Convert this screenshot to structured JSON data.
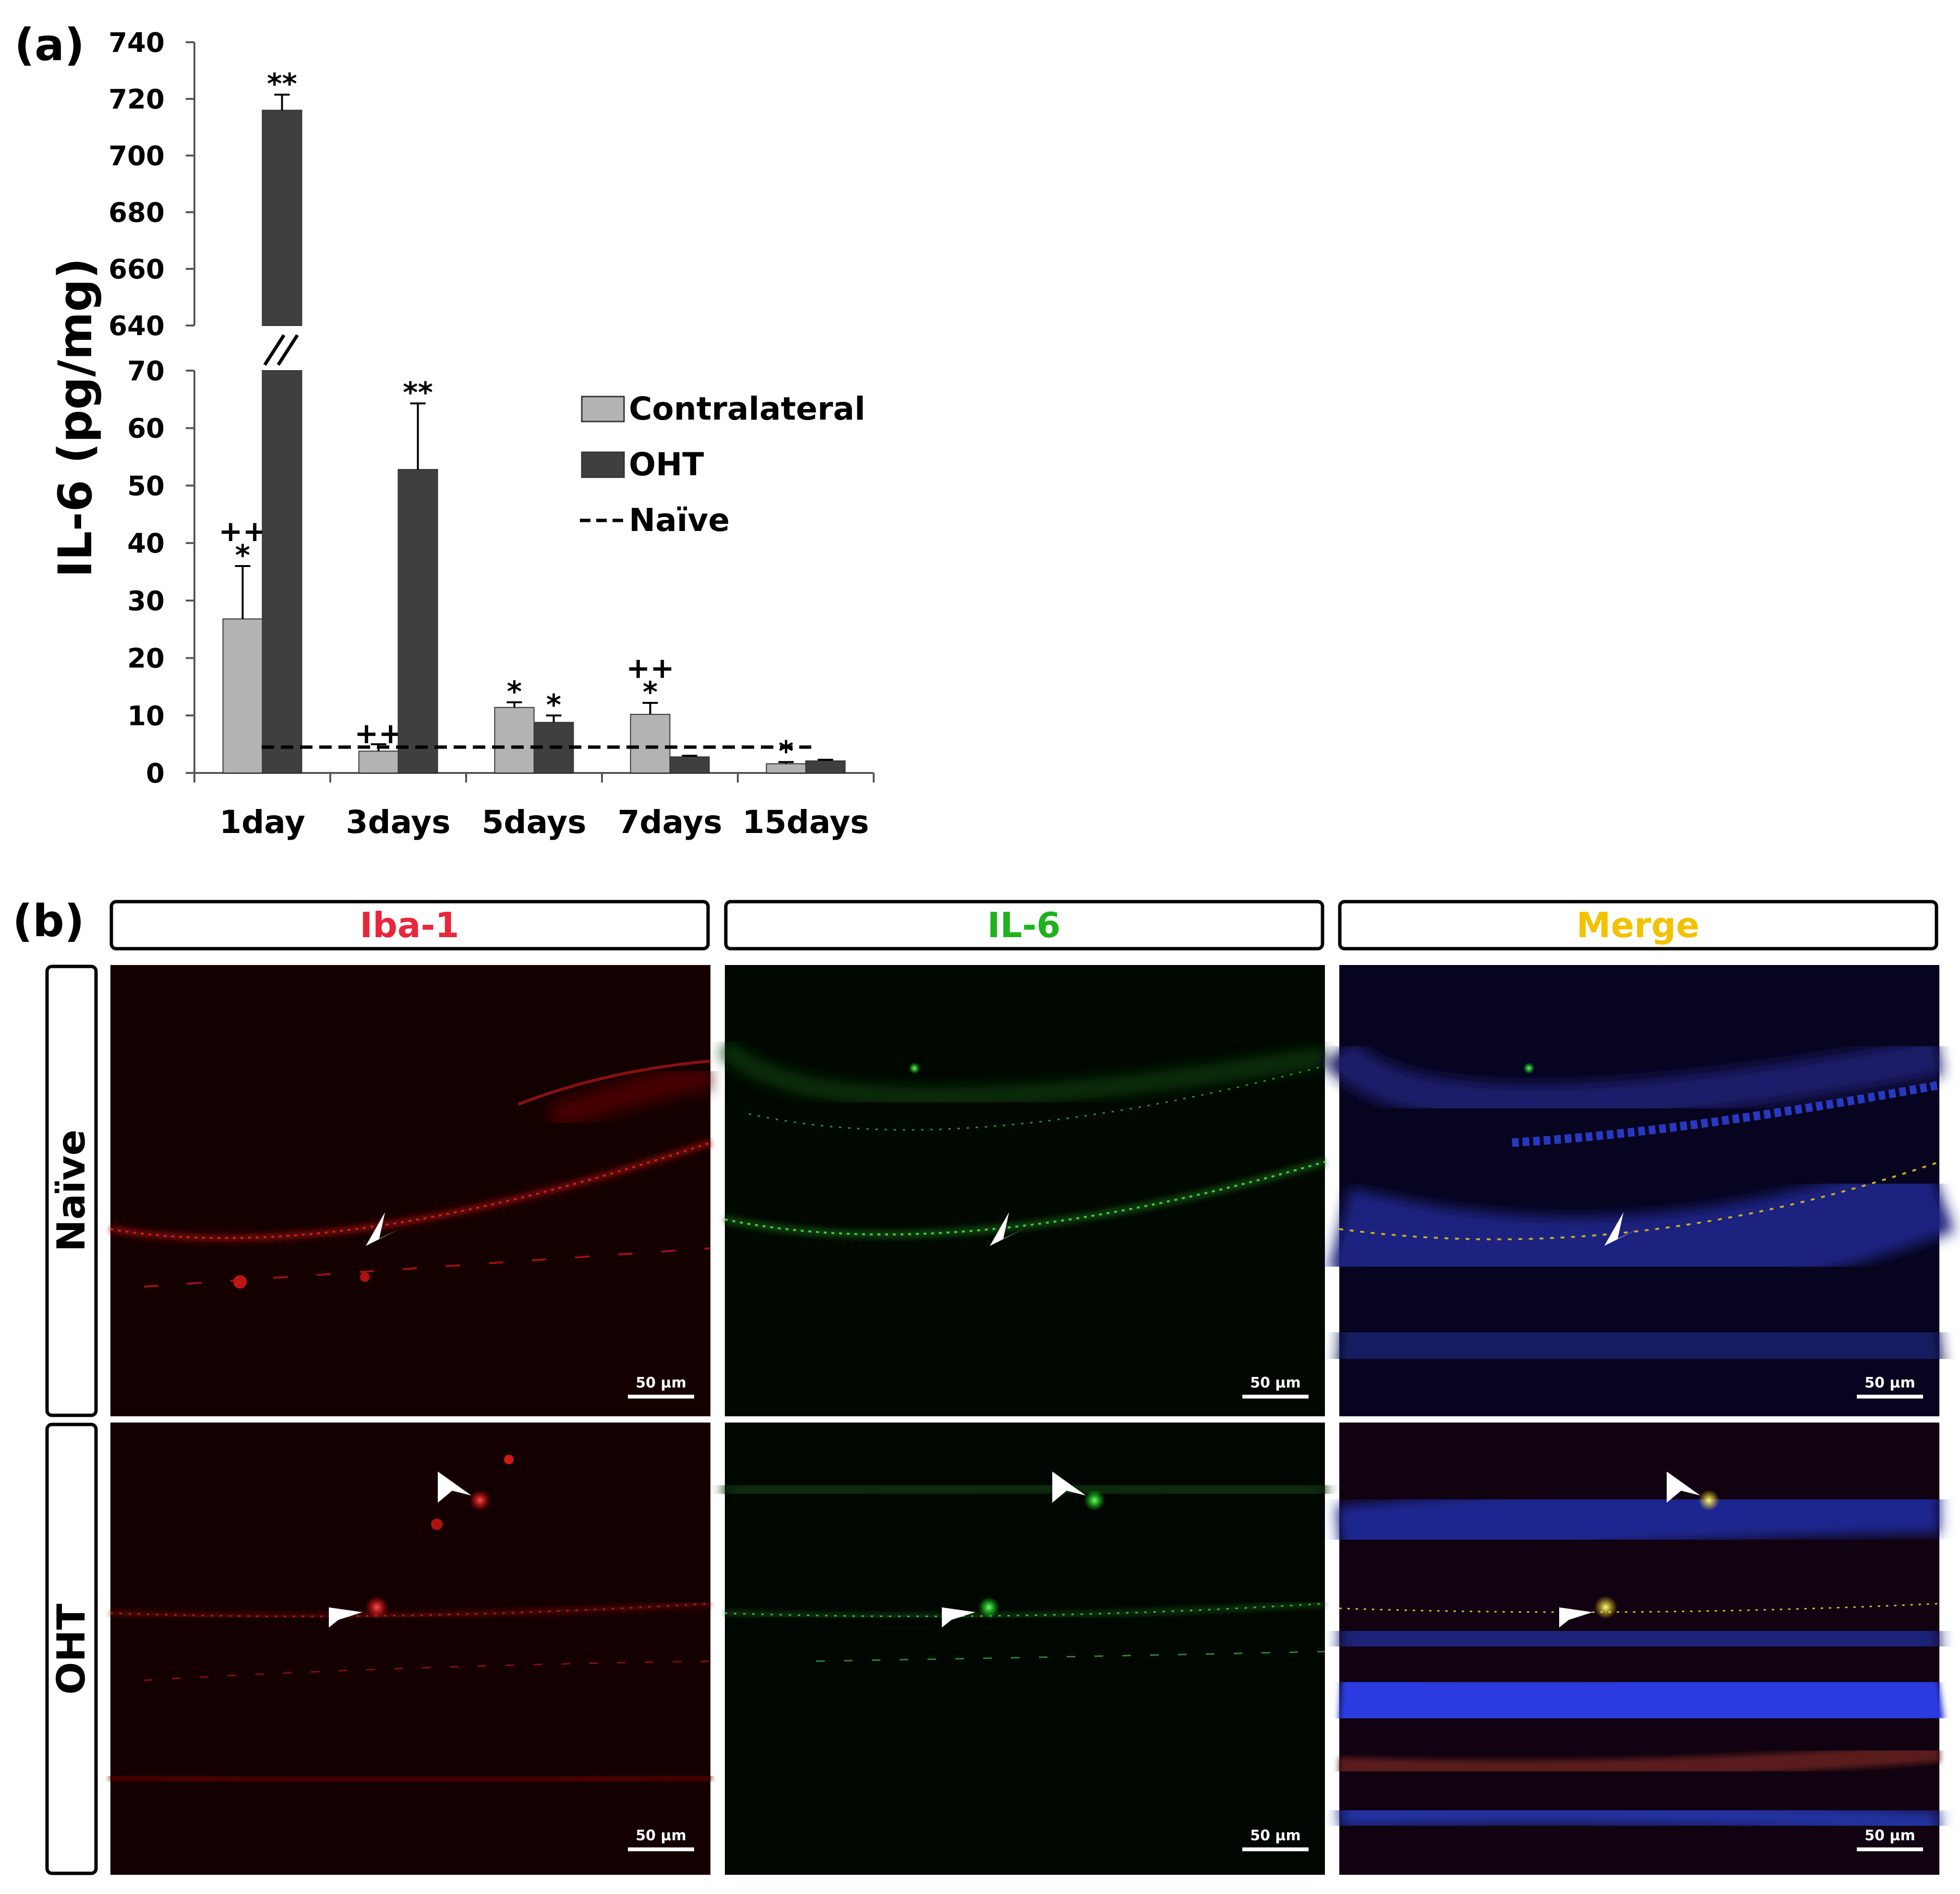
{
  "panel_a": {
    "label": "(a)",
    "ylabel": "IL-6 (pg/mg)",
    "legend": [
      {
        "name": "Contralateral",
        "color": "#b3b3b3",
        "kind": "box"
      },
      {
        "name": "OHT",
        "color": "#3f3f3f",
        "kind": "box"
      },
      {
        "name": "Naïve",
        "color": "#000000",
        "kind": "dashed"
      }
    ]
  },
  "chart_data": {
    "type": "bar",
    "categories": [
      "1day",
      "3days",
      "5days",
      "7days",
      "15days"
    ],
    "series": [
      {
        "name": "Contralateral",
        "color": "#b3b3b3",
        "values": [
          26.8,
          3.8,
          11.4,
          10.2,
          1.6
        ],
        "errors": [
          9.2,
          1.2,
          0.9,
          2.0,
          0.3
        ],
        "annotations": [
          [
            "++",
            "*"
          ],
          [
            "++",
            ""
          ],
          [
            "*"
          ],
          [
            "++",
            "*"
          ],
          [
            "*"
          ]
        ]
      },
      {
        "name": "OHT",
        "color": "#3f3f3f",
        "values": [
          716,
          52.8,
          8.8,
          2.8,
          2.1
        ],
        "errors": [
          5.5,
          11.5,
          1.2,
          0.2,
          0.2
        ],
        "annotations": [
          [
            "**"
          ],
          [
            "**"
          ],
          [
            "*"
          ],
          [],
          []
        ]
      }
    ],
    "reference_line": {
      "name": "Naïve",
      "value": 4.5,
      "style": "dashed"
    },
    "yaxis_lower": {
      "range": [
        0,
        70
      ],
      "ticks": [
        "0",
        "10",
        "20",
        "30",
        "40",
        "50",
        "60",
        "70"
      ]
    },
    "yaxis_upper": {
      "range": [
        640,
        740
      ],
      "ticks": [
        "640",
        "660",
        "680",
        "700",
        "720",
        "740"
      ]
    },
    "axis_break": "//",
    "xlabel": "",
    "grid": false
  },
  "panel_b": {
    "label": "(b)",
    "columns": [
      {
        "label": "Iba-1",
        "color": "#e8283a"
      },
      {
        "label": "IL-6",
        "color": "#1db31d"
      },
      {
        "label": "Merge",
        "color": "#f2c200"
      }
    ],
    "rows": [
      {
        "label": "Naïve"
      },
      {
        "label": "OHT"
      }
    ],
    "scale_bar": "50 µm"
  }
}
